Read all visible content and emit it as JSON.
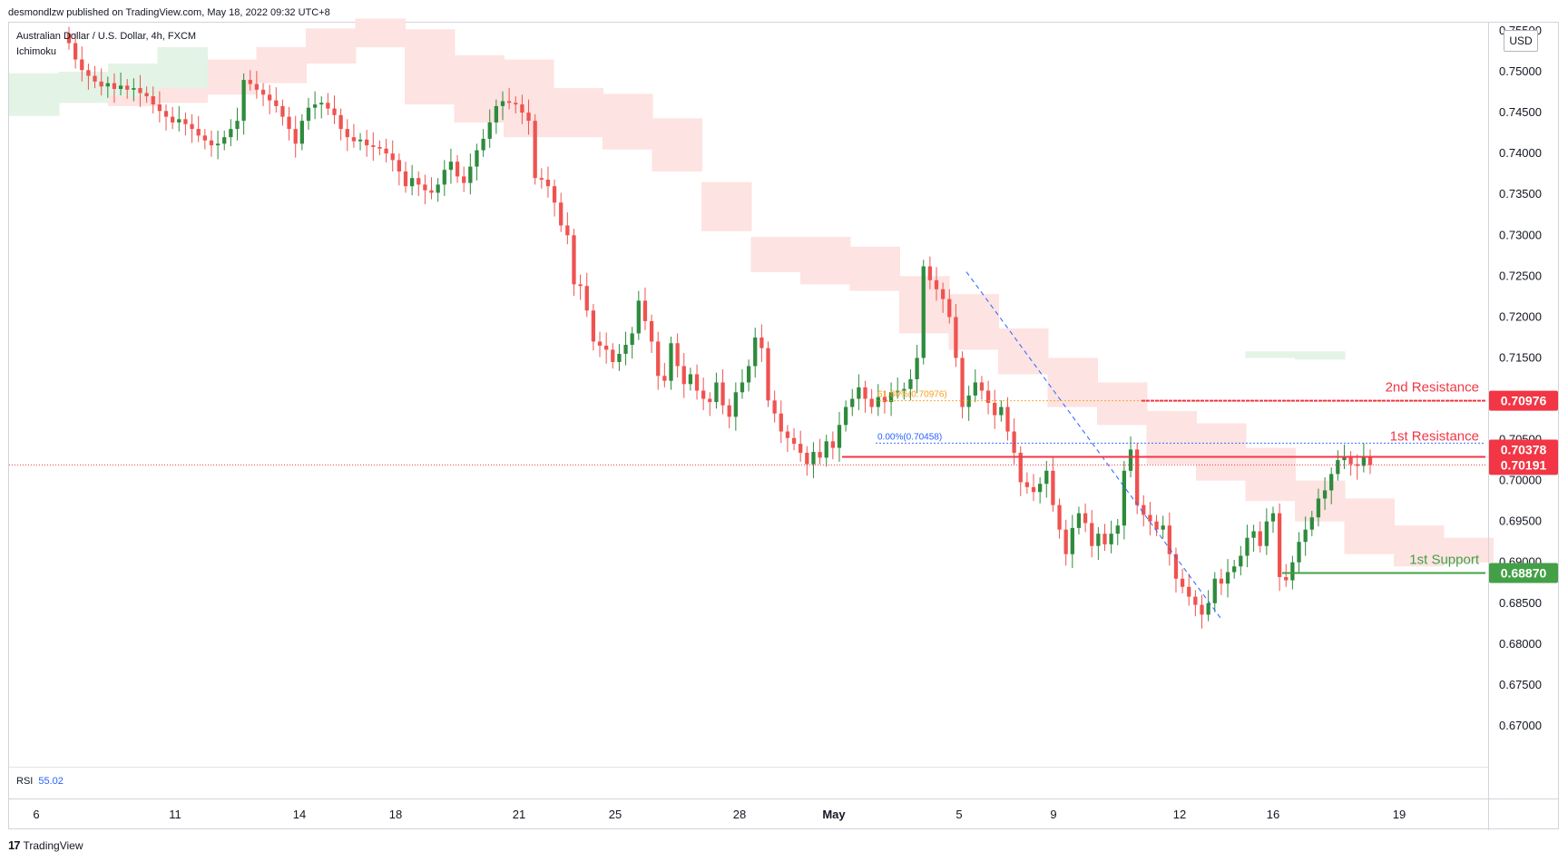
{
  "publisher": "desmondlzw published on TradingView.com, May 18, 2022 09:32 UTC+8",
  "legend": {
    "symbol": "Australian Dollar / U.S. Dollar, 4h, FXCM",
    "indicator": "Ichimoku"
  },
  "currency_button": "USD",
  "rsi": {
    "label": "RSI",
    "value": "55.02"
  },
  "footer": {
    "logo": "17",
    "brand": "TradingView"
  },
  "colors": {
    "up": "#26a69a",
    "up_candle": "#2e8b3d",
    "down": "#ef5350",
    "cloud_bear": "#fde3e1",
    "cloud_bull": "#e3f3e6",
    "resistance": "#f23645",
    "support": "#43a047",
    "fib": "#f7a21b",
    "trend": "#2962ff"
  },
  "chart_data": {
    "type": "candlestick",
    "title": "Australian Dollar / U.S. Dollar, 4h, FXCM",
    "ylim": [
      0.665,
      0.756
    ],
    "y_ticks": [
      "0.75500",
      "0.75000",
      "0.74500",
      "0.74000",
      "0.73500",
      "0.73000",
      "0.72500",
      "0.72000",
      "0.71500",
      "0.71000",
      "0.70500",
      "0.70000",
      "0.69500",
      "0.69000",
      "0.68500",
      "0.68000",
      "0.67500",
      "0.67000"
    ],
    "x_ticks": [
      "6",
      "11",
      "14",
      "18",
      "21",
      "25",
      "28",
      "May",
      "5",
      "9",
      "12",
      "16",
      "19"
    ],
    "closes": [
      0.7535,
      0.7515,
      0.7502,
      0.7495,
      0.7488,
      0.7482,
      0.7486,
      0.7479,
      0.7483,
      0.7478,
      0.748,
      0.7474,
      0.747,
      0.746,
      0.7452,
      0.7445,
      0.7438,
      0.7442,
      0.7436,
      0.743,
      0.7422,
      0.7416,
      0.741,
      0.7412,
      0.742,
      0.743,
      0.744,
      0.749,
      0.7485,
      0.7478,
      0.7472,
      0.7465,
      0.7458,
      0.7445,
      0.743,
      0.7412,
      0.744,
      0.7456,
      0.746,
      0.7462,
      0.7455,
      0.7447,
      0.743,
      0.742,
      0.7415,
      0.7417,
      0.741,
      0.7408,
      0.7406,
      0.74,
      0.7392,
      0.7378,
      0.736,
      0.737,
      0.7362,
      0.7355,
      0.7352,
      0.7362,
      0.738,
      0.739,
      0.7372,
      0.7364,
      0.7384,
      0.7404,
      0.7418,
      0.7438,
      0.7458,
      0.7464,
      0.7462,
      0.746,
      0.745,
      0.744,
      0.737,
      0.7368,
      0.736,
      0.734,
      0.7312,
      0.73,
      0.724,
      0.7238,
      0.7208,
      0.717,
      0.7165,
      0.716,
      0.7145,
      0.7155,
      0.7166,
      0.718,
      0.722,
      0.7195,
      0.717,
      0.7128,
      0.7122,
      0.7168,
      0.714,
      0.7118,
      0.713,
      0.711,
      0.71,
      0.7096,
      0.712,
      0.7092,
      0.7078,
      0.7108,
      0.712,
      0.714,
      0.7175,
      0.7162,
      0.7098,
      0.7082,
      0.706,
      0.7052,
      0.7045,
      0.7034,
      0.702,
      0.7035,
      0.7028,
      0.7048,
      0.704,
      0.7068,
      0.709,
      0.71,
      0.7114,
      0.71,
      0.709,
      0.7102,
      0.7096,
      0.7108,
      0.711,
      0.7112,
      0.7124,
      0.715,
      0.7262,
      0.7245,
      0.7234,
      0.7222,
      0.72,
      0.715,
      0.709,
      0.7104,
      0.712,
      0.711,
      0.7095,
      0.708,
      0.709,
      0.706,
      0.7034,
      0.6998,
      0.6992,
      0.6986,
      0.6996,
      0.7012,
      0.697,
      0.694,
      0.691,
      0.6942,
      0.696,
      0.6948,
      0.692,
      0.6935,
      0.6922,
      0.6935,
      0.6945,
      0.7012,
      0.7038,
      0.697,
      0.6958,
      0.695,
      0.694,
      0.6945,
      0.691,
      0.688,
      0.687,
      0.6858,
      0.6848,
      0.6836,
      0.685,
      0.688,
      0.6874,
      0.6888,
      0.6895,
      0.6908,
      0.693,
      0.6938,
      0.692,
      0.695,
      0.696,
      0.6882,
      0.6878,
      0.69,
      0.6925,
      0.694,
      0.6955,
      0.6978,
      0.6988,
      0.7008,
      0.7025,
      0.7028,
      0.702,
      0.7018,
      0.703,
      0.7019
    ],
    "cloud_band": [
      [
        0,
        0.7485,
        0.7498
      ],
      [
        1,
        0.7465,
        0.7492
      ],
      [
        2,
        0.7458,
        0.7492
      ],
      [
        3,
        0.7462,
        0.7505
      ],
      [
        4,
        0.7472,
        0.7515
      ],
      [
        5,
        0.7486,
        0.753
      ],
      [
        6,
        0.751,
        0.7553
      ],
      [
        7,
        0.753,
        0.7565
      ],
      [
        8,
        0.746,
        0.7552
      ],
      [
        9,
        0.7438,
        0.752
      ],
      [
        10,
        0.742,
        0.7515
      ],
      [
        11,
        0.742,
        0.748
      ],
      [
        12,
        0.7405,
        0.7473
      ],
      [
        13,
        0.7378,
        0.7443
      ],
      [
        14,
        0.7305,
        0.7365
      ],
      [
        15,
        0.7255,
        0.7298
      ],
      [
        16,
        0.724,
        0.7298
      ],
      [
        17,
        0.7232,
        0.7286
      ],
      [
        18,
        0.718,
        0.725
      ],
      [
        19,
        0.716,
        0.7228
      ],
      [
        20,
        0.713,
        0.7186
      ],
      [
        21,
        0.709,
        0.715
      ],
      [
        22,
        0.7068,
        0.712
      ],
      [
        23,
        0.702,
        0.7085
      ],
      [
        24,
        0.7,
        0.707
      ],
      [
        25,
        0.6975,
        0.704
      ],
      [
        26,
        0.695,
        0.7
      ],
      [
        27,
        0.691,
        0.6978
      ],
      [
        28,
        0.6895,
        0.6945
      ],
      [
        29,
        0.69,
        0.693
      ]
    ],
    "cloud_green": [
      [
        0,
        0.7446,
        0.7498
      ],
      [
        1,
        0.7462,
        0.75
      ],
      [
        2,
        0.747,
        0.751
      ],
      [
        3,
        0.748,
        0.753
      ],
      [
        25,
        0.715,
        0.7158
      ],
      [
        26,
        0.7148,
        0.7158
      ]
    ],
    "levels": [
      {
        "name": "2nd Resistance",
        "value": 0.70976,
        "label": "0.70976"
      },
      {
        "name": "1st Resistance",
        "value": 0.70378,
        "label": "0.70378"
      },
      {
        "name": "Last",
        "value": 0.70191,
        "label": "0.70191"
      },
      {
        "name": "1st Support",
        "value": 0.6887,
        "label": "0.68870"
      }
    ],
    "fib": [
      {
        "label": "61.80%(0.70976)",
        "value": 0.70976
      },
      {
        "label": "0.00%(0.70458)",
        "value": 0.70458
      }
    ],
    "rsi_value": 55.02
  }
}
